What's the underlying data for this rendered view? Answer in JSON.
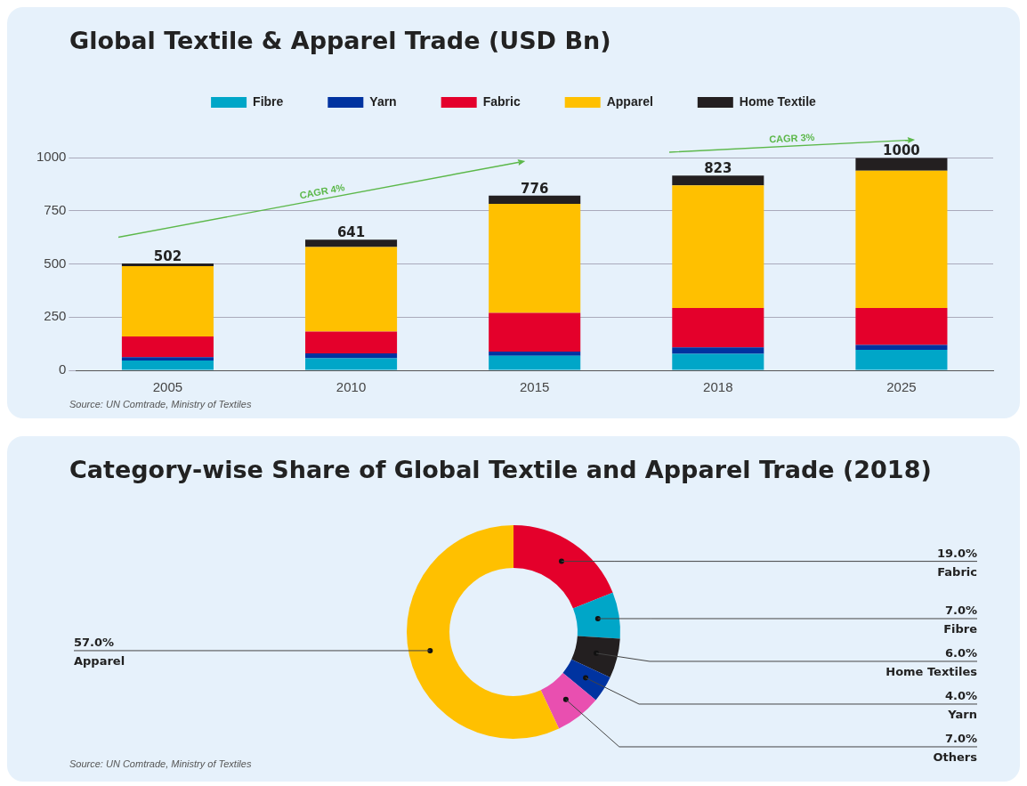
{
  "chart_data": [
    {
      "type": "bar",
      "title": "Global Textile & Apparel Trade (USD Bn)",
      "stacked": true,
      "categories": [
        "2005",
        "2010",
        "2015",
        "2018",
        "2025"
      ],
      "series": [
        {
          "name": "Fibre",
          "color": "#00a6c8",
          "values": [
            46,
            57,
            68,
            77,
            96
          ]
        },
        {
          "name": "Yarn",
          "color": "#0033a0",
          "values": [
            16,
            23,
            20,
            31,
            23
          ]
        },
        {
          "name": "Fabric",
          "color": "#e4002b",
          "values": [
            97,
            102,
            182,
            185,
            174
          ]
        },
        {
          "name": "Apparel",
          "color": "#ffc000",
          "values": [
            331,
            398,
            512,
            576,
            645
          ]
        },
        {
          "name": "Home Textile",
          "color": "#231f20",
          "values": [
            12,
            34,
            39,
            46,
            60
          ]
        }
      ],
      "ylim": [
        0,
        1000
      ],
      "yticks": [
        0,
        250,
        500,
        750,
        1000
      ],
      "grid": "y",
      "legend": "top",
      "annotations": [
        "CAGR 4%",
        "CAGR 3%",
        "Source: UN Comtrade, Ministry of Textiles",
        {
          "text": "502",
          "x": "2005",
          "y": 502
        },
        {
          "text": "641",
          "x": "2010",
          "y": 614
        },
        {
          "text": "776",
          "x": "2015",
          "y": 821
        },
        {
          "text": "823",
          "x": "2018",
          "y": 915
        },
        {
          "text": "1000",
          "x": "2025",
          "y": 998
        }
      ]
    },
    {
      "type": "donut",
      "title": "Category-wise Share of Global Textile and Apparel Trade (2018)",
      "categories": [
        "Fabric",
        "Fibre",
        "Home Textiles",
        "Yarn",
        "Others",
        "Apparel"
      ],
      "values": [
        19,
        7,
        6,
        4,
        7,
        57
      ],
      "colors": [
        "#e4002b",
        "#00a6c8",
        "#231f20",
        "#0033a0",
        "#e94fb0",
        "#ffc000"
      ],
      "value_labels": [
        "19.0%",
        "7.0%",
        "6.0%",
        "4.0%",
        "7.0%",
        "57.0%"
      ],
      "annotations": [
        "Source: UN Comtrade, Ministry of Textiles"
      ]
    }
  ]
}
